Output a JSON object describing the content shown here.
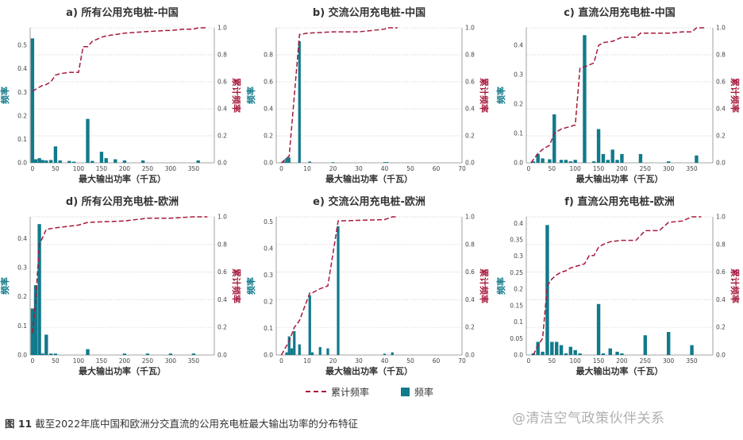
{
  "colors": {
    "bar": "#117a8b",
    "line": "#a6193c",
    "grid": "#c9c9c9",
    "axis": "#888888"
  },
  "legend": {
    "cum_label": "累计频率",
    "freq_label": "频率"
  },
  "caption": {
    "fig": "图 11",
    "text": "截至2022年底中国和欧洲分交直流的公用充电桩最大输出功率的分布特征"
  },
  "watermark": "@清洁空气政策伙伴关系",
  "chart_data": [
    {
      "type": "bar",
      "title": "a) 所有公用充电桩-中国",
      "xlabel": "最大输出功率（千瓦）",
      "ylabel": "频率",
      "y2label": "累计频率",
      "xlim": [
        -5,
        395
      ],
      "xticks": [
        0,
        50,
        100,
        150,
        200,
        250,
        300,
        350
      ],
      "ylim": [
        0,
        0.575
      ],
      "yticks": [
        0,
        0.1,
        0.2,
        0.3,
        0.4,
        0.5
      ],
      "y2ticks": [
        0,
        0.2,
        0.4,
        0.6,
        0.8,
        1.0
      ],
      "bar_width": 7.5,
      "bars": [
        [
          0,
          0.53
        ],
        [
          7,
          0.015
        ],
        [
          15,
          0.02
        ],
        [
          22,
          0.012
        ],
        [
          30,
          0.01
        ],
        [
          40,
          0.012
        ],
        [
          50,
          0.07
        ],
        [
          60,
          0.01
        ],
        [
          80,
          0.008
        ],
        [
          90,
          0.005
        ],
        [
          120,
          0.187
        ],
        [
          130,
          0.008
        ],
        [
          150,
          0.047
        ],
        [
          160,
          0.02
        ],
        [
          180,
          0.015
        ],
        [
          200,
          0.01
        ],
        [
          240,
          0.01
        ],
        [
          360,
          0.01
        ]
      ],
      "cumulative": [
        [
          0,
          0.53
        ],
        [
          10,
          0.55
        ],
        [
          20,
          0.57
        ],
        [
          30,
          0.58
        ],
        [
          40,
          0.6
        ],
        [
          50,
          0.65
        ],
        [
          60,
          0.66
        ],
        [
          80,
          0.67
        ],
        [
          95,
          0.67
        ],
        [
          100,
          0.67
        ],
        [
          110,
          0.86
        ],
        [
          120,
          0.86
        ],
        [
          130,
          0.9
        ],
        [
          150,
          0.93
        ],
        [
          160,
          0.94
        ],
        [
          180,
          0.95
        ],
        [
          200,
          0.96
        ],
        [
          240,
          0.97
        ],
        [
          290,
          0.98
        ],
        [
          300,
          0.98
        ],
        [
          330,
          0.99
        ],
        [
          350,
          0.99
        ],
        [
          360,
          1.0
        ],
        [
          380,
          1.0
        ]
      ]
    },
    {
      "type": "bar",
      "title": "b) 交流公用充电桩-中国",
      "xlabel": "最大输出功率（千瓦）",
      "ylabel": "频率",
      "y2label": "累计频率",
      "xlim": [
        -2,
        70
      ],
      "xticks": [
        0,
        10,
        20,
        30,
        40,
        50,
        60,
        70
      ],
      "ylim": [
        0,
        1.0
      ],
      "yticks": [
        0,
        0.2,
        0.4,
        0.6,
        0.8
      ],
      "y2ticks": [
        0,
        0.2,
        0.4,
        0.6,
        0.8,
        1.0
      ],
      "bar_width": 1.0,
      "bars": [
        [
          1,
          0.01
        ],
        [
          2,
          0.035
        ],
        [
          3,
          0.04
        ],
        [
          7,
          0.9
        ],
        [
          11,
          0.01
        ],
        [
          20,
          0.005
        ],
        [
          40,
          0.005
        ],
        [
          41,
          0.005
        ]
      ],
      "cumulative": [
        [
          0,
          0.0
        ],
        [
          3,
          0.05
        ],
        [
          7,
          0.95
        ],
        [
          10,
          0.96
        ],
        [
          20,
          0.97
        ],
        [
          30,
          0.97
        ],
        [
          40,
          0.99
        ],
        [
          41,
          1.0
        ],
        [
          45,
          1.0
        ]
      ]
    },
    {
      "type": "bar",
      "title": "c) 直流公用充电桩-中国",
      "xlabel": "最大输出功率（千瓦）",
      "ylabel": "频率",
      "y2label": "累计频率",
      "xlim": [
        -5,
        395
      ],
      "xticks": [
        0,
        50,
        100,
        150,
        200,
        250,
        300,
        350
      ],
      "ylim": [
        0,
        0.46
      ],
      "yticks": [
        0,
        0.1,
        0.2,
        0.3,
        0.4
      ],
      "y2ticks": [
        0,
        0.2,
        0.4,
        0.6,
        0.8,
        1.0
      ],
      "bar_width": 7.5,
      "bars": [
        [
          10,
          0.005
        ],
        [
          20,
          0.03
        ],
        [
          30,
          0.015
        ],
        [
          45,
          0.012
        ],
        [
          55,
          0.165
        ],
        [
          70,
          0.01
        ],
        [
          80,
          0.01
        ],
        [
          90,
          0.005
        ],
        [
          100,
          0.01
        ],
        [
          120,
          0.435
        ],
        [
          140,
          0.005
        ],
        [
          150,
          0.115
        ],
        [
          160,
          0.03
        ],
        [
          170,
          0.01
        ],
        [
          180,
          0.045
        ],
        [
          190,
          0.01
        ],
        [
          200,
          0.03
        ],
        [
          240,
          0.03
        ],
        [
          300,
          0.005
        ],
        [
          360,
          0.025
        ]
      ],
      "cumulative": [
        [
          5,
          0.0
        ],
        [
          20,
          0.07
        ],
        [
          30,
          0.1
        ],
        [
          45,
          0.13
        ],
        [
          55,
          0.22
        ],
        [
          70,
          0.25
        ],
        [
          90,
          0.27
        ],
        [
          100,
          0.28
        ],
        [
          110,
          0.7
        ],
        [
          120,
          0.71
        ],
        [
          140,
          0.74
        ],
        [
          150,
          0.87
        ],
        [
          160,
          0.89
        ],
        [
          180,
          0.9
        ],
        [
          200,
          0.93
        ],
        [
          230,
          0.93
        ],
        [
          240,
          0.96
        ],
        [
          300,
          0.96
        ],
        [
          330,
          0.97
        ],
        [
          350,
          0.97
        ],
        [
          360,
          1.0
        ],
        [
          380,
          1.0
        ]
      ]
    },
    {
      "type": "bar",
      "title": "d) 所有公用充电桩-欧洲",
      "xlabel": "最大输出功率（千瓦）",
      "ylabel": "频率",
      "y2label": "累计频率",
      "xlim": [
        -5,
        395
      ],
      "xticks": [
        0,
        50,
        100,
        150,
        200,
        250,
        300,
        350
      ],
      "ylim": [
        0,
        0.475
      ],
      "yticks": [
        0,
        0.1,
        0.2,
        0.3,
        0.4
      ],
      "y2ticks": [
        0,
        0.2,
        0.4,
        0.6,
        0.8,
        1.0
      ],
      "bar_width": 7.5,
      "bars": [
        [
          0,
          0.16
        ],
        [
          7,
          0.24
        ],
        [
          15,
          0.45
        ],
        [
          22,
          0.005
        ],
        [
          30,
          0.07
        ],
        [
          40,
          0.005
        ],
        [
          50,
          0.005
        ],
        [
          120,
          0.02
        ],
        [
          200,
          0.005
        ],
        [
          250,
          0.005
        ],
        [
          300,
          0.005
        ],
        [
          350,
          0.005
        ]
      ],
      "cumulative": [
        [
          0,
          0.16
        ],
        [
          7,
          0.4
        ],
        [
          15,
          0.8
        ],
        [
          22,
          0.85
        ],
        [
          30,
          0.91
        ],
        [
          50,
          0.92
        ],
        [
          100,
          0.94
        ],
        [
          120,
          0.96
        ],
        [
          200,
          0.97
        ],
        [
          250,
          0.99
        ],
        [
          300,
          0.99
        ],
        [
          350,
          1.0
        ],
        [
          380,
          1.0
        ]
      ]
    },
    {
      "type": "bar",
      "title": "e) 交流公用充电桩-欧洲",
      "xlabel": "最大输出功率（千瓦）",
      "ylabel": "频率",
      "y2label": "累计频率",
      "xlim": [
        -2,
        70
      ],
      "xticks": [
        0,
        10,
        20,
        30,
        40,
        50,
        60,
        70
      ],
      "ylim": [
        0,
        0.52
      ],
      "yticks": [
        0,
        0.1,
        0.2,
        0.3,
        0.4,
        0.5
      ],
      "y2ticks": [
        0,
        0.2,
        0.4,
        0.6,
        0.8,
        1.0
      ],
      "bar_width": 1.0,
      "bars": [
        [
          2,
          0.01
        ],
        [
          3,
          0.07
        ],
        [
          4,
          0.025
        ],
        [
          5,
          0.09
        ],
        [
          7,
          0.04
        ],
        [
          11,
          0.225
        ],
        [
          12,
          0.01
        ],
        [
          15,
          0.03
        ],
        [
          18,
          0.025
        ],
        [
          22,
          0.485
        ],
        [
          40,
          0.005
        ],
        [
          43,
          0.01
        ]
      ],
      "cumulative": [
        [
          0,
          0.0
        ],
        [
          3,
          0.1
        ],
        [
          5,
          0.2
        ],
        [
          7,
          0.25
        ],
        [
          11,
          0.45
        ],
        [
          12,
          0.45
        ],
        [
          15,
          0.48
        ],
        [
          18,
          0.5
        ],
        [
          22,
          0.97
        ],
        [
          40,
          0.98
        ],
        [
          43,
          1.0
        ],
        [
          45,
          1.0
        ]
      ]
    },
    {
      "type": "bar",
      "title": "f) 直流公用充电桩-欧洲",
      "xlabel": "最大输出功率（千瓦）",
      "ylabel": "频率",
      "y2label": "累计频率",
      "xlim": [
        -5,
        395
      ],
      "xticks": [
        0,
        50,
        100,
        150,
        200,
        250,
        300,
        350
      ],
      "ylim": [
        0,
        0.42
      ],
      "yticks": [
        0,
        0.05,
        0.1,
        0.15,
        0.2,
        0.25,
        0.3,
        0.35,
        0.4
      ],
      "y2ticks": [
        0,
        0.2,
        0.4,
        0.6,
        0.8,
        1.0
      ],
      "bar_width": 7.5,
      "bars": [
        [
          10,
          0.005
        ],
        [
          20,
          0.04
        ],
        [
          30,
          0.01
        ],
        [
          40,
          0.395
        ],
        [
          50,
          0.04
        ],
        [
          60,
          0.04
        ],
        [
          70,
          0.03
        ],
        [
          80,
          0.005
        ],
        [
          90,
          0.025
        ],
        [
          100,
          0.015
        ],
        [
          110,
          0.005
        ],
        [
          150,
          0.155
        ],
        [
          160,
          0.005
        ],
        [
          175,
          0.02
        ],
        [
          190,
          0.01
        ],
        [
          200,
          0.005
        ],
        [
          250,
          0.06
        ],
        [
          300,
          0.07
        ],
        [
          350,
          0.03
        ]
      ],
      "cumulative": [
        [
          10,
          0.0
        ],
        [
          20,
          0.07
        ],
        [
          30,
          0.12
        ],
        [
          40,
          0.5
        ],
        [
          50,
          0.55
        ],
        [
          60,
          0.58
        ],
        [
          70,
          0.6
        ],
        [
          80,
          0.61
        ],
        [
          90,
          0.63
        ],
        [
          100,
          0.64
        ],
        [
          120,
          0.66
        ],
        [
          130,
          0.72
        ],
        [
          140,
          0.72
        ],
        [
          150,
          0.78
        ],
        [
          160,
          0.8
        ],
        [
          175,
          0.82
        ],
        [
          200,
          0.83
        ],
        [
          230,
          0.83
        ],
        [
          250,
          0.9
        ],
        [
          280,
          0.9
        ],
        [
          300,
          0.96
        ],
        [
          330,
          0.97
        ],
        [
          350,
          1.0
        ],
        [
          370,
          1.0
        ]
      ]
    }
  ]
}
